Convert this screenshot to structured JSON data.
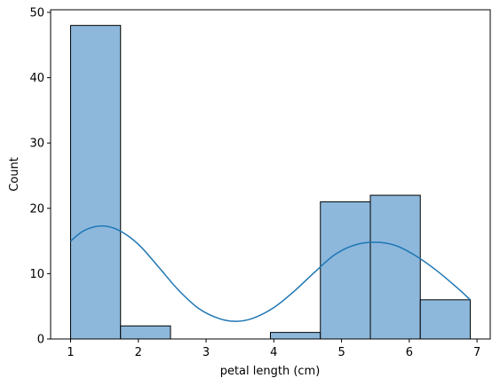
{
  "chart_data": {
    "type": "bar",
    "subtype": "histogram with kde",
    "title": "",
    "xlabel": "petal length (cm)",
    "ylabel": "Count",
    "xlim": [
      0.705,
      7.195
    ],
    "ylim": [
      0,
      50.4
    ],
    "xticks": [
      1,
      2,
      3,
      4,
      5,
      6,
      7
    ],
    "yticks": [
      0,
      10,
      20,
      30,
      40,
      50
    ],
    "bins": [
      {
        "x0": 1.0,
        "x1": 1.7375,
        "count": 48
      },
      {
        "x0": 1.7375,
        "x1": 2.475,
        "count": 2
      },
      {
        "x0": 2.475,
        "x1": 3.2125,
        "count": 0
      },
      {
        "x0": 3.2125,
        "x1": 3.95,
        "count": 0
      },
      {
        "x0": 3.95,
        "x1": 4.6875,
        "count": 1
      },
      {
        "x0": 4.6875,
        "x1": 5.425,
        "count": 21
      },
      {
        "x0": 5.425,
        "x1": 6.1625,
        "count": 22
      },
      {
        "x0": 6.1625,
        "x1": 6.9,
        "count": 6
      }
    ],
    "kde": {
      "x": [
        1.0,
        1.2,
        1.45,
        1.7,
        2.0,
        2.3,
        2.6,
        2.9,
        3.2,
        3.45,
        3.7,
        4.0,
        4.3,
        4.6,
        4.9,
        5.2,
        5.5,
        5.8,
        6.1,
        6.4,
        6.7,
        6.9
      ],
      "y": [
        15.0,
        16.6,
        17.3,
        16.7,
        14.5,
        11.0,
        7.4,
        4.6,
        3.1,
        2.7,
        3.2,
        4.8,
        7.3,
        10.2,
        12.9,
        14.4,
        14.8,
        14.3,
        12.7,
        10.5,
        7.9,
        6.0
      ]
    },
    "grid": false,
    "legend": "none",
    "colors": {
      "bar_fill": "#8db8dc",
      "bar_edge": "#000000",
      "kde_line": "#1f77b4"
    }
  }
}
